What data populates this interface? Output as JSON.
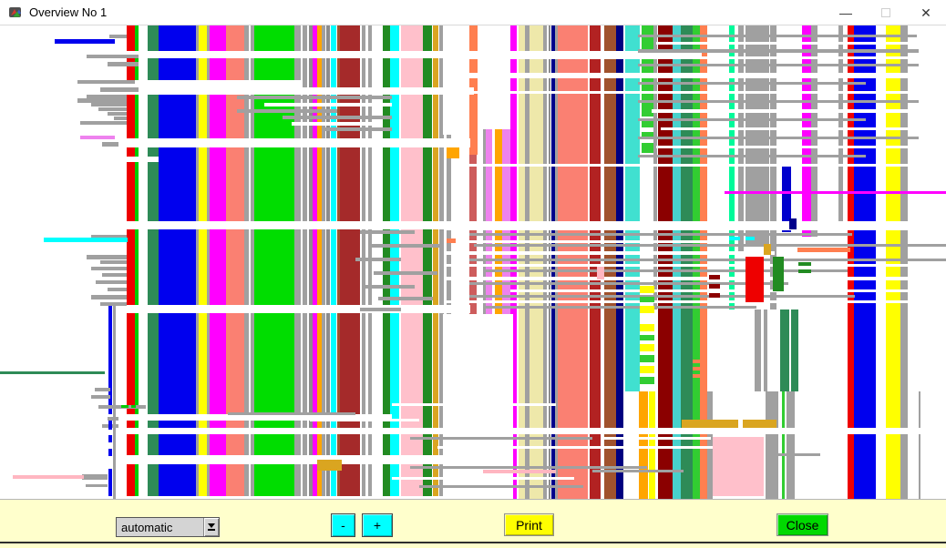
{
  "window": {
    "title": "Overview No 1",
    "minimize_glyph": "—",
    "close_glyph": "✕"
  },
  "toolbar": {
    "dropdown_value": "automatic",
    "zoom_out_label": "-",
    "zoom_in_label": "+",
    "print_label": "Print",
    "close_label": "Close",
    "colors": {
      "bar_bg": "#FFFFCC",
      "zoom_btn": "#00FFFF",
      "print_btn": "#FFFF00",
      "close_btn": "#00D900"
    }
  },
  "canvas": {
    "bg": "#FFFFFF",
    "stripes": [
      [
        139,
        9,
        "#EE0000"
      ],
      [
        148,
        4,
        "#00CC00"
      ],
      [
        162,
        12,
        "#2E8B57"
      ],
      [
        162,
        16,
        "#2E8B57",
        309,
        211
      ],
      [
        174,
        41,
        "#0000EE"
      ],
      [
        215,
        3,
        "#A0A0A0"
      ],
      [
        218,
        9,
        "#FFFF00"
      ],
      [
        227,
        3,
        "#A0A0A0"
      ],
      [
        230,
        18,
        "#FF00FF"
      ],
      [
        248,
        20,
        "#FA8072"
      ],
      [
        268,
        5,
        "#A0A0A0"
      ],
      [
        275,
        4,
        "#A0A0A0"
      ],
      [
        279,
        44,
        "#00DD00"
      ],
      [
        323,
        7,
        "#A0A0A0"
      ],
      [
        332,
        5,
        "#A0A0A0"
      ],
      [
        339,
        4,
        "#8C8C8C"
      ],
      [
        343,
        5,
        "#FF00FF"
      ],
      [
        348,
        5,
        "#FFA500"
      ],
      [
        353,
        4,
        "#A0A0A0"
      ],
      [
        358,
        4,
        "#8C8C8C"
      ],
      [
        363,
        6,
        "#00FFFF"
      ],
      [
        370,
        3,
        "#A0522D"
      ],
      [
        373,
        22,
        "#A52A2A"
      ],
      [
        397,
        4,
        "#A0A0A0"
      ],
      [
        404,
        4,
        "#A0A0A0"
      ],
      [
        420,
        8,
        "#228B22"
      ],
      [
        428,
        10,
        "#00FFFF"
      ],
      [
        440,
        24,
        "#FFC0CB"
      ],
      [
        464,
        10,
        "#228B22"
      ],
      [
        475,
        6,
        "#DAA520"
      ],
      [
        482,
        5,
        "#A0A0A0"
      ],
      [
        490,
        5,
        "#A0A0A0",
        120,
        200
      ],
      [
        515,
        9,
        "#FF7F50",
        0,
        142
      ],
      [
        515,
        8,
        "#CD5C5C",
        142,
        175
      ],
      [
        530,
        3,
        "#A0A0A0",
        114,
        203
      ],
      [
        533,
        7,
        "#EE82EE",
        114,
        203
      ],
      [
        543,
        8,
        "#FFA500",
        114,
        203
      ],
      [
        551,
        9,
        "#EE82EE",
        114,
        203
      ],
      [
        560,
        7,
        "#FF00FF"
      ],
      [
        569,
        7,
        "#EEE8AA"
      ],
      [
        576,
        5,
        "#A0A0A0"
      ],
      [
        581,
        15,
        "#EEE8AA"
      ],
      [
        596,
        4,
        "#A0A0A0"
      ],
      [
        602,
        2,
        "#8C8C8C"
      ],
      [
        605,
        4,
        "#00008B"
      ],
      [
        609,
        3,
        "#A0A0A0"
      ],
      [
        612,
        33,
        "#FA8072"
      ],
      [
        647,
        12,
        "#B22222"
      ],
      [
        663,
        13,
        "#A0522D"
      ],
      [
        676,
        8,
        "#000080"
      ],
      [
        686,
        16,
        "#40E0D0",
        0,
        402
      ],
      [
        704,
        13,
        "#32CD32",
        0,
        140
      ],
      [
        717,
        4,
        "#A0A0A0",
        0,
        312
      ],
      [
        701,
        10,
        "#FFA500",
        402,
        118
      ],
      [
        712,
        7,
        "#FFFF00",
        402,
        118
      ],
      [
        722,
        16,
        "#8B0000"
      ],
      [
        738,
        9,
        "#48D1CC"
      ],
      [
        747,
        13,
        "#2E8B57"
      ],
      [
        760,
        8,
        "#32CD32"
      ],
      [
        768,
        8,
        "#FF7F50"
      ],
      [
        776,
        6,
        "#A0A0A0",
        402,
        118
      ],
      [
        800,
        6,
        "#00FA9A",
        0,
        312
      ],
      [
        810,
        6,
        "#A0A0A0",
        0,
        252
      ],
      [
        818,
        26,
        "#A0A0A0",
        0,
        240
      ],
      [
        828,
        7,
        "#A0A0A0",
        312,
        90
      ],
      [
        838,
        4,
        "#A0A0A0",
        312,
        90
      ],
      [
        845,
        7,
        "#A0A0A0",
        0,
        312
      ],
      [
        856,
        10,
        "#2E8B57",
        312,
        90
      ],
      [
        868,
        8,
        "#2E8B57",
        312,
        90
      ],
      [
        840,
        14,
        "#A0A0A0",
        402,
        118
      ],
      [
        858,
        3,
        "#32CD32",
        402,
        118
      ],
      [
        863,
        9,
        "#A0A0A0",
        402,
        118
      ],
      [
        858,
        10,
        "#0000CD",
        152,
        75
      ],
      [
        880,
        10,
        "#FF00FF",
        0,
        232
      ],
      [
        890,
        7,
        "#A0A0A0",
        0,
        232
      ],
      [
        920,
        5,
        "#A0A0A0",
        0,
        224
      ],
      [
        930,
        7,
        "#EE0000"
      ],
      [
        937,
        24,
        "#0000EE"
      ],
      [
        972,
        16,
        "#FFFF00"
      ],
      [
        988,
        8,
        "#A0A0A0"
      ],
      [
        1008,
        2,
        "#A0A0A0",
        402,
        118
      ],
      [
        119,
        4,
        "#0000EE",
        307,
        120
      ],
      [
        124,
        3,
        "#A0A0A0",
        307,
        213
      ]
    ],
    "gaps": [
      [
        486,
        0,
        29,
        120
      ],
      [
        486,
        317,
        77,
        203
      ],
      [
        776,
        0,
        24,
        402
      ],
      [
        878,
        304,
        52,
        216
      ],
      [
        806,
        312,
        22,
        90
      ],
      [
        130,
        28,
        640,
        8
      ],
      [
        130,
        60,
        202,
        8
      ],
      [
        85,
        68,
        435,
        8
      ],
      [
        490,
        52,
        548,
        6
      ],
      [
        130,
        124,
        386,
        10
      ],
      [
        100,
        144,
        74,
        6
      ],
      [
        130,
        215,
        908,
        9
      ],
      [
        130,
        307,
        386,
        9
      ],
      [
        130,
        427,
        300,
        7
      ],
      [
        130,
        442,
        908,
        7
      ],
      [
        130,
        472,
        390,
        10
      ],
      [
        130,
        517,
        390,
        3
      ],
      [
        704,
        100,
        13,
        5
      ],
      [
        704,
        112,
        13,
        5
      ],
      [
        704,
        124,
        13,
        5
      ],
      [
        490,
        222,
        548,
        3
      ],
      [
        490,
        236,
        300,
        3
      ],
      [
        490,
        248,
        360,
        4
      ],
      [
        490,
        262,
        548,
        3
      ],
      [
        490,
        276,
        548,
        4
      ],
      [
        560,
        290,
        478,
        3
      ],
      [
        490,
        302,
        548,
        3
      ],
      [
        720,
        18,
        288,
        3
      ],
      [
        515,
        34,
        494,
        3
      ],
      [
        720,
        52,
        288,
        4
      ],
      [
        515,
        72,
        494,
        3
      ],
      [
        715,
        92,
        293,
        4
      ],
      [
        725,
        112,
        283,
        3
      ],
      [
        720,
        132,
        288,
        3
      ],
      [
        515,
        152,
        494,
        3
      ],
      [
        290,
        85,
        140,
        4
      ],
      [
        320,
        106,
        90,
        4
      ],
      [
        430,
        415,
        180,
        3
      ],
      [
        340,
        432,
        120,
        3
      ],
      [
        480,
        462,
        340,
        3
      ],
      [
        660,
        452,
        120,
        3
      ],
      [
        430,
        496,
        200,
        3
      ]
    ],
    "marks": [
      [
        120,
        10,
        19,
        4,
        "#A0A0A0"
      ],
      [
        95,
        32,
        57,
        4,
        "#A0A0A0"
      ],
      [
        118,
        40,
        34,
        5,
        "#A0A0A0"
      ],
      [
        85,
        60,
        63,
        4,
        "#A0A0A0"
      ],
      [
        110,
        68,
        42,
        5,
        "#A0A0A0"
      ],
      [
        95,
        76,
        44,
        4,
        "#A0A0A0"
      ],
      [
        85,
        80,
        54,
        5,
        "#A0A0A0"
      ],
      [
        100,
        85,
        39,
        4,
        "#A0A0A0"
      ],
      [
        108,
        90,
        31,
        4,
        "#A0A0A0"
      ],
      [
        118,
        95,
        21,
        4,
        "#A0A0A0"
      ],
      [
        125,
        100,
        14,
        4,
        "#A0A0A0"
      ],
      [
        88,
        105,
        51,
        4,
        "#A0A0A0"
      ],
      [
        112,
        128,
        18,
        5,
        "#A0A0A0"
      ],
      [
        88,
        121,
        38,
        4,
        "#EE82EE"
      ],
      [
        100,
        230,
        39,
        4,
        "#A0A0A0"
      ],
      [
        95,
        252,
        44,
        5,
        "#A0A0A0"
      ],
      [
        110,
        258,
        29,
        4,
        "#A0A0A0"
      ],
      [
        100,
        265,
        39,
        4,
        "#A0A0A0"
      ],
      [
        112,
        272,
        27,
        4,
        "#A0A0A0"
      ],
      [
        105,
        280,
        34,
        4,
        "#A0A0A0"
      ],
      [
        118,
        288,
        21,
        4,
        "#A0A0A0"
      ],
      [
        100,
        296,
        39,
        5,
        "#A0A0A0"
      ],
      [
        110,
        304,
        29,
        4,
        "#A0A0A0"
      ],
      [
        104,
        398,
        17,
        4,
        "#A0A0A0"
      ],
      [
        100,
        406,
        21,
        4,
        "#A0A0A0"
      ],
      [
        108,
        417,
        52,
        4,
        "#A0A0A0"
      ],
      [
        133,
        417,
        8,
        3,
        "#00CC00"
      ],
      [
        144,
        417,
        5,
        3,
        "#00CC00"
      ],
      [
        118,
        430,
        12,
        4,
        "#A0A0A0"
      ],
      [
        112,
        438,
        18,
        4,
        "#A0A0A0"
      ],
      [
        90,
        493,
        28,
        6,
        "#A0A0A0"
      ],
      [
        94,
        504,
        24,
        3,
        "#A0A0A0"
      ],
      [
        60,
        15,
        66,
        5,
        "#0000EE"
      ],
      [
        48,
        233,
        92,
        5,
        "#00FFFF"
      ],
      [
        0,
        380,
        115,
        3,
        "#2E8B57"
      ],
      [
        14,
        494,
        78,
        4,
        "#FFB6C1"
      ],
      [
        795,
        182,
        243,
        3,
        "#FF00FF"
      ],
      [
        995,
        256,
        43,
        2,
        "#228B22"
      ],
      [
        875,
        244,
        58,
        5,
        "#FF7F50"
      ],
      [
        748,
        433,
        62,
        9,
        "#DAA520"
      ],
      [
        815,
        433,
        37,
        9,
        "#DAA520"
      ],
      [
        348,
        477,
        27,
        12,
        "#DAA520"
      ],
      [
        490,
        134,
        14,
        12,
        "#FFA500"
      ],
      [
        490,
        234,
        10,
        5,
        "#FF7F50"
      ],
      [
        260,
        77,
        170,
        4,
        "#A0A0A0"
      ],
      [
        260,
        92,
        110,
        4,
        "#A0A0A0"
      ],
      [
        310,
        99,
        120,
        4,
        "#A0A0A0"
      ],
      [
        355,
        112,
        75,
        4,
        "#A0A0A0"
      ],
      [
        700,
        10,
        306,
        3,
        "#A0A0A0"
      ],
      [
        700,
        26,
        308,
        4,
        "#A0A0A0"
      ],
      [
        700,
        42,
        308,
        3,
        "#A0A0A0"
      ],
      [
        700,
        62,
        250,
        3,
        "#A0A0A0"
      ],
      [
        700,
        82,
        308,
        3,
        "#A0A0A0"
      ],
      [
        700,
        102,
        250,
        3,
        "#A0A0A0"
      ],
      [
        700,
        122,
        308,
        3,
        "#A0A0A0"
      ],
      [
        700,
        142,
        250,
        3,
        "#A0A0A0"
      ],
      [
        515,
        228,
        420,
        3,
        "#A0A0A0"
      ],
      [
        520,
        240,
        518,
        3,
        "#A0A0A0"
      ],
      [
        515,
        256,
        523,
        3,
        "#A0A0A0"
      ],
      [
        530,
        268,
        400,
        3,
        "#A0A0A0"
      ],
      [
        515,
        282,
        350,
        3,
        "#A0A0A0"
      ],
      [
        515,
        296,
        423,
        3,
        "#A0A0A0"
      ],
      [
        530,
        308,
        300,
        3,
        "#A0A0A0"
      ],
      [
        395,
        225,
        60,
        4,
        "#A0A0A0"
      ],
      [
        405,
        240,
        80,
        4,
        "#A0A0A0"
      ],
      [
        390,
        255,
        50,
        4,
        "#A0A0A0"
      ],
      [
        410,
        270,
        70,
        4,
        "#A0A0A0"
      ],
      [
        400,
        285,
        55,
        4,
        "#A0A0A0"
      ],
      [
        415,
        298,
        60,
        4,
        "#A0A0A0"
      ],
      [
        395,
        310,
        45,
        4,
        "#A0A0A0"
      ],
      [
        250,
        425,
        140,
        3,
        "#A0A0A0"
      ],
      [
        450,
        452,
        200,
        3,
        "#A0A0A0"
      ],
      [
        840,
        470,
        60,
        3,
        "#A0A0A0"
      ],
      [
        530,
        488,
        80,
        4,
        "#FFB6C1"
      ],
      [
        650,
        488,
        100,
        3,
        "#A0A0A0"
      ],
      [
        450,
        484,
        260,
        3,
        "#A0A0A0"
      ],
      [
        460,
        505,
        180,
        3,
        "#A0A0A0"
      ],
      [
        818,
        254,
        20,
        50,
        "#EE0000"
      ],
      [
        838,
        240,
        8,
        12,
        "#DAA520"
      ],
      [
        848,
        254,
        12,
        38,
        "#228B22"
      ],
      [
        782,
        452,
        56,
        65,
        "#FFC0CB"
      ],
      [
        702,
        286,
        16,
        8,
        "#FFFF00"
      ],
      [
        702,
        298,
        16,
        6,
        "#32CD32"
      ],
      [
        702,
        308,
        16,
        8,
        "#FFFF00"
      ],
      [
        702,
        328,
        16,
        8,
        "#FFFF00"
      ],
      [
        702,
        340,
        16,
        6,
        "#32CD32"
      ],
      [
        702,
        350,
        16,
        8,
        "#FFFF00"
      ],
      [
        702,
        362,
        16,
        8,
        "#32CD32"
      ],
      [
        702,
        374,
        16,
        8,
        "#FFFF00"
      ],
      [
        702,
        386,
        16,
        8,
        "#32CD32"
      ],
      [
        760,
        367,
        16,
        4,
        "#FF7F50"
      ],
      [
        760,
        375,
        16,
        4,
        "#FF7F50"
      ],
      [
        760,
        383,
        16,
        4,
        "#FF7F50"
      ],
      [
        778,
        274,
        12,
        5,
        "#8B0000"
      ],
      [
        778,
        284,
        12,
        5,
        "#8B0000"
      ],
      [
        778,
        294,
        12,
        5,
        "#8B0000"
      ],
      [
        876,
        260,
        14,
        4,
        "#228B22"
      ],
      [
        876,
        268,
        14,
        4,
        "#228B22"
      ],
      [
        800,
        232,
        12,
        4,
        "#00FFFF"
      ],
      [
        818,
        232,
        10,
        4,
        "#00FFFF"
      ],
      [
        866,
        212,
        8,
        12,
        "#00008B"
      ],
      [
        655,
        265,
        8,
        14,
        "#FFB6C1"
      ],
      [
        119,
        434,
        4,
        10,
        "#0000EE"
      ],
      [
        119,
        450,
        4,
        8,
        "#0000EE"
      ],
      [
        119,
        465,
        4,
        8,
        "#0000EE"
      ],
      [
        119,
        487,
        4,
        30,
        "#0000EE"
      ]
    ]
  }
}
